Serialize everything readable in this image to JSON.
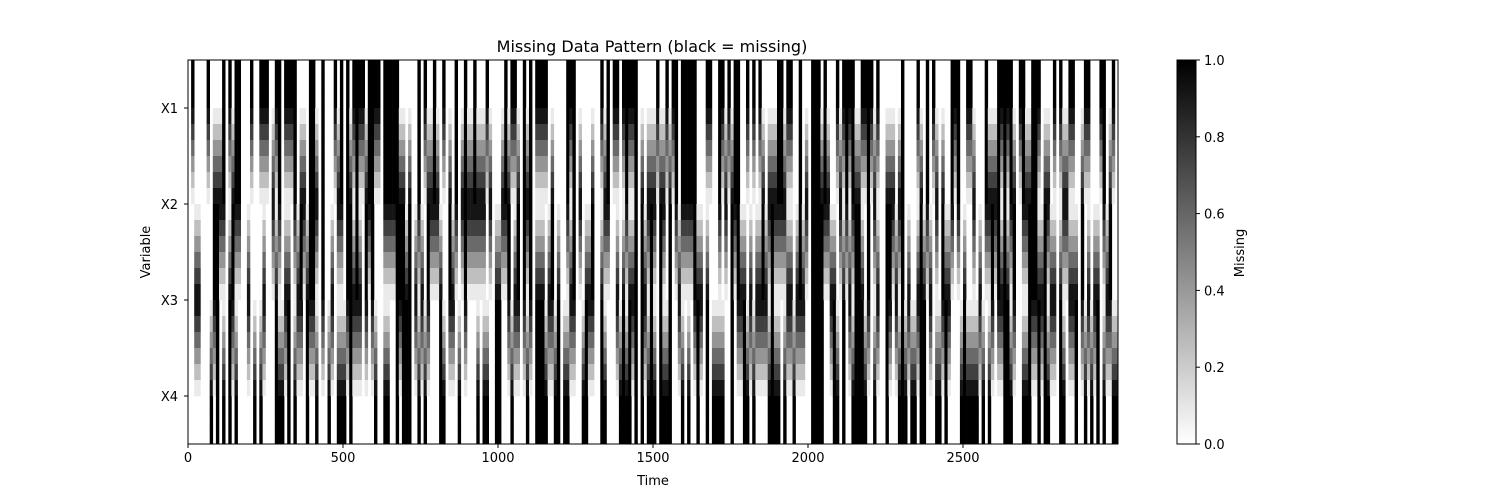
{
  "chart_data": {
    "type": "heatmap",
    "title": "Missing Data Pattern (black = missing)",
    "xlabel": "Time",
    "ylabel": "Variable",
    "xlim": [
      0,
      3000
    ],
    "x_ticks": [
      0,
      500,
      1000,
      1500,
      2000,
      2500
    ],
    "y_categories": [
      "X1",
      "X2",
      "X3",
      "X4"
    ],
    "value_range": [
      0,
      1
    ],
    "colormap": "gray_r (0 = white, 1 = black)",
    "interpolation": "smooth (bilinear)",
    "colorbar": {
      "label": "Missing",
      "ticks": [
        "0.0",
        "0.2",
        "0.4",
        "0.6",
        "0.8",
        "1.0"
      ]
    },
    "missing_fraction_approx": 0.45,
    "grid": false
  }
}
